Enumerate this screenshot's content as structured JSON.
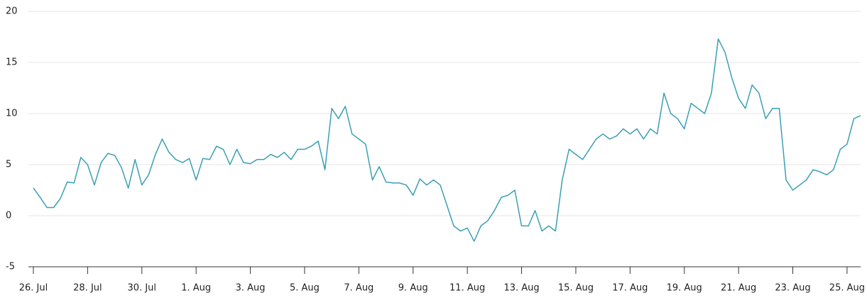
{
  "chart_data": {
    "type": "line",
    "x": [
      0,
      0.25,
      0.5,
      0.75,
      1,
      1.25,
      1.5,
      1.75,
      2,
      2.25,
      2.5,
      2.75,
      3,
      3.25,
      3.5,
      3.75,
      4,
      4.25,
      4.5,
      4.75,
      5,
      5.25,
      5.5,
      5.75,
      6,
      6.25,
      6.5,
      6.75,
      7,
      7.25,
      7.5,
      7.75,
      8,
      8.25,
      8.5,
      8.75,
      9,
      9.25,
      9.5,
      9.75,
      10,
      10.25,
      10.5,
      10.75,
      11,
      11.25,
      11.5,
      11.75,
      12,
      12.25,
      12.5,
      12.75,
      13,
      13.25,
      13.5,
      13.75,
      14,
      14.25,
      14.5,
      14.75,
      15,
      15.25,
      15.5,
      15.75,
      16,
      16.25,
      16.5,
      16.75,
      17,
      17.25,
      17.5,
      17.75,
      18,
      18.25,
      18.5,
      18.75,
      19,
      19.25,
      19.5,
      19.75,
      20,
      20.25,
      20.5,
      20.75,
      21,
      21.25,
      21.5,
      21.75,
      22,
      22.25,
      22.5,
      22.75,
      23,
      23.25,
      23.5,
      23.75,
      24,
      24.25,
      24.5,
      24.75,
      25,
      25.25,
      25.5,
      25.75,
      26,
      26.25,
      26.5,
      26.75,
      27,
      27.25,
      27.5,
      27.75,
      28,
      28.25,
      28.5,
      28.75,
      29,
      29.25,
      29.5,
      29.75,
      30,
      30.25,
      30.5
    ],
    "series": [
      {
        "color": "#3a9fb5",
        "values": [
          2.7,
          1.8,
          0.8,
          0.8,
          1.7,
          3.3,
          3.2,
          5.7,
          5.0,
          3.0,
          5.2,
          6.1,
          5.9,
          4.7,
          2.7,
          5.5,
          3.0,
          4.0,
          6.0,
          7.5,
          6.2,
          5.5,
          5.2,
          5.6,
          3.5,
          5.6,
          5.5,
          6.8,
          6.5,
          5.0,
          6.5,
          5.2,
          5.1,
          5.5,
          5.5,
          6.0,
          5.7,
          6.2,
          5.5,
          6.5,
          6.5,
          6.8,
          7.3,
          4.5,
          10.5,
          9.5,
          10.7,
          8.0,
          7.5,
          7.0,
          3.5,
          4.8,
          3.3,
          3.2,
          3.2,
          3.0,
          2.0,
          3.6,
          3.0,
          3.5,
          3.0,
          1.0,
          -1.0,
          -1.5,
          -1.2,
          -2.5,
          -1.0,
          -0.5,
          0.5,
          1.8,
          2.0,
          2.5,
          -1.0,
          -1.0,
          0.5,
          -1.5,
          -1.0,
          -1.5,
          3.5,
          6.5,
          6.0,
          5.5,
          6.5,
          7.5,
          8.0,
          7.5,
          7.8,
          8.5,
          8.0,
          8.5,
          7.5,
          8.5,
          8.0,
          12.0,
          10.0,
          9.5,
          8.5,
          11.0,
          10.5,
          10.0,
          12.0,
          17.3,
          16.0,
          13.5,
          11.5,
          10.5,
          12.8,
          12.0,
          9.5,
          10.5,
          10.5,
          3.5,
          2.5,
          3.0,
          3.5,
          4.5,
          4.3,
          4.0,
          4.5,
          6.5,
          7.0,
          9.5,
          9.8
        ]
      }
    ],
    "xlim": [
      0,
      30.5
    ],
    "xticks": [
      {
        "value": 0,
        "label": "26. Jul"
      },
      {
        "value": 2,
        "label": "28. Jul"
      },
      {
        "value": 4,
        "label": "30. Jul"
      },
      {
        "value": 6,
        "label": "1. Aug"
      },
      {
        "value": 8,
        "label": "3. Aug"
      },
      {
        "value": 10,
        "label": "5. Aug"
      },
      {
        "value": 12,
        "label": "7. Aug"
      },
      {
        "value": 14,
        "label": "9. Aug"
      },
      {
        "value": 16,
        "label": "11. Aug"
      },
      {
        "value": 18,
        "label": "13. Aug"
      },
      {
        "value": 20,
        "label": "15. Aug"
      },
      {
        "value": 22,
        "label": "17. Aug"
      },
      {
        "value": 24,
        "label": "19. Aug"
      },
      {
        "value": 26,
        "label": "21. Aug"
      },
      {
        "value": 28,
        "label": "23. Aug"
      },
      {
        "value": 30,
        "label": "25. Aug"
      }
    ],
    "ylim": [
      -5,
      20
    ],
    "yticks": [
      -5,
      0,
      5,
      10,
      15,
      20
    ],
    "grid": true
  }
}
